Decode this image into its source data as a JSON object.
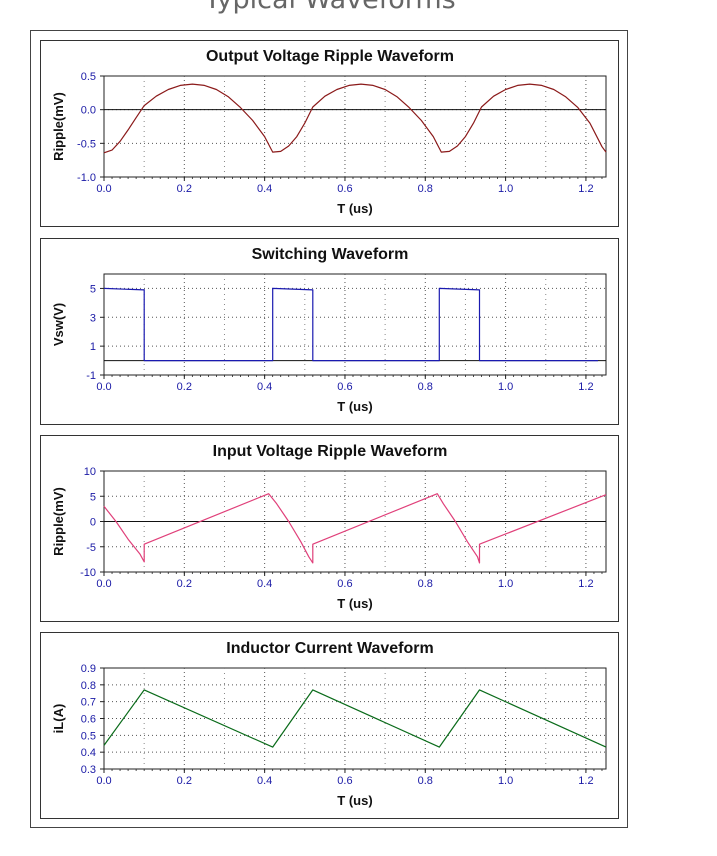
{
  "page": {
    "heading": "Typical Waveforms"
  },
  "chart_data": [
    {
      "type": "line",
      "title": "Output Voltage Ripple Waveform",
      "xlabel": "T (us)",
      "ylabel": "Ripple(mV)",
      "xlim": [
        0,
        1.25
      ],
      "ylim": [
        -1.0,
        0.5
      ],
      "xticks": [
        "0.0",
        "0.2",
        "0.4",
        "0.6",
        "0.8",
        "1.0",
        "1.2"
      ],
      "yticks": [
        "0.5",
        "0.0",
        "-0.5",
        "-1.0"
      ],
      "ytick_values": [
        0.5,
        0.0,
        -0.5,
        -1.0
      ],
      "zero_line": true,
      "grid": true,
      "color": "#8b1a1a",
      "series": [
        {
          "x": [
            0.0,
            0.02,
            0.04,
            0.06,
            0.08,
            0.1,
            0.13,
            0.16,
            0.19,
            0.22,
            0.25,
            0.28,
            0.31,
            0.34,
            0.37,
            0.4,
            0.42,
            0.44,
            0.46,
            0.48,
            0.5,
            0.52,
            0.55,
            0.58,
            0.61,
            0.64,
            0.67,
            0.7,
            0.73,
            0.76,
            0.79,
            0.82,
            0.84,
            0.86,
            0.88,
            0.9,
            0.92,
            0.94,
            0.97,
            1.0,
            1.03,
            1.06,
            1.09,
            1.12,
            1.15,
            1.18,
            1.21,
            1.24,
            1.25
          ],
          "y": [
            -0.64,
            -0.6,
            -0.47,
            -0.3,
            -0.12,
            0.06,
            0.2,
            0.3,
            0.36,
            0.38,
            0.36,
            0.3,
            0.19,
            0.03,
            -0.16,
            -0.4,
            -0.63,
            -0.62,
            -0.54,
            -0.4,
            -0.2,
            0.04,
            0.2,
            0.3,
            0.36,
            0.38,
            0.36,
            0.3,
            0.19,
            0.03,
            -0.16,
            -0.4,
            -0.63,
            -0.62,
            -0.54,
            -0.4,
            -0.2,
            0.04,
            0.2,
            0.3,
            0.36,
            0.38,
            0.36,
            0.3,
            0.19,
            0.03,
            -0.2,
            -0.55,
            -0.63
          ]
        }
      ]
    },
    {
      "type": "line",
      "title": "Switching Waveform",
      "xlabel": "T (us)",
      "ylabel": "Vsw(V)",
      "xlim": [
        0,
        1.25
      ],
      "ylim": [
        -1,
        6
      ],
      "xticks": [
        "0.0",
        "0.2",
        "0.4",
        "0.6",
        "0.8",
        "1.0",
        "1.2"
      ],
      "yticks": [
        "5",
        "3",
        "1",
        "-1"
      ],
      "ytick_values": [
        5,
        3,
        1,
        -1
      ],
      "zero_line": true,
      "grid": true,
      "color": "#1a1ab0",
      "series": [
        {
          "x": [
            0.0,
            0.1,
            0.1,
            0.42,
            0.42,
            0.52,
            0.52,
            0.835,
            0.835,
            0.935,
            0.935,
            1.23
          ],
          "y": [
            5.0,
            4.9,
            0.0,
            0.0,
            5.0,
            4.9,
            0.0,
            0.0,
            5.0,
            4.9,
            0.0,
            0.0
          ]
        }
      ]
    },
    {
      "type": "line",
      "title": "Input Voltage Ripple Waveform",
      "xlabel": "T (us)",
      "ylabel": "Ripple(mV)",
      "xlim": [
        0,
        1.25
      ],
      "ylim": [
        -10,
        10
      ],
      "xticks": [
        "0.0",
        "0.2",
        "0.4",
        "0.6",
        "0.8",
        "1.0",
        "1.2"
      ],
      "yticks": [
        "10",
        "5",
        "0",
        "-5",
        "-10"
      ],
      "ytick_values": [
        10,
        5,
        0,
        -5,
        -10
      ],
      "zero_line": true,
      "grid": true,
      "color": "#e0407a",
      "series": [
        {
          "x": [
            0.0,
            0.03,
            0.06,
            0.09,
            0.1,
            0.1,
            0.41,
            0.43,
            0.46,
            0.49,
            0.51,
            0.52,
            0.52,
            0.83,
            0.845,
            0.875,
            0.905,
            0.93,
            0.935,
            0.935,
            1.25
          ],
          "y": [
            3.0,
            0.0,
            -3.5,
            -6.5,
            -8.0,
            -4.5,
            5.5,
            3.5,
            0.0,
            -4.0,
            -7.0,
            -8.2,
            -4.5,
            5.5,
            3.5,
            0.0,
            -4.0,
            -7.0,
            -8.2,
            -4.5,
            5.3
          ]
        }
      ]
    },
    {
      "type": "line",
      "title": "Inductor Current Waveform",
      "xlabel": "T (us)",
      "ylabel": "iL(A)",
      "xlim": [
        0,
        1.25
      ],
      "ylim": [
        0.3,
        0.9
      ],
      "xticks": [
        "0.0",
        "0.2",
        "0.4",
        "0.6",
        "0.8",
        "1.0",
        "1.2"
      ],
      "yticks": [
        "0.9",
        "0.8",
        "0.7",
        "0.6",
        "0.5",
        "0.4",
        "0.3"
      ],
      "ytick_values": [
        0.9,
        0.8,
        0.7,
        0.6,
        0.5,
        0.4,
        0.3
      ],
      "zero_line": false,
      "grid": true,
      "color": "#0a6b1a",
      "series": [
        {
          "x": [
            0.0,
            0.1,
            0.42,
            0.52,
            0.835,
            0.935,
            1.25
          ],
          "y": [
            0.44,
            0.77,
            0.43,
            0.77,
            0.43,
            0.77,
            0.43
          ]
        }
      ]
    }
  ]
}
